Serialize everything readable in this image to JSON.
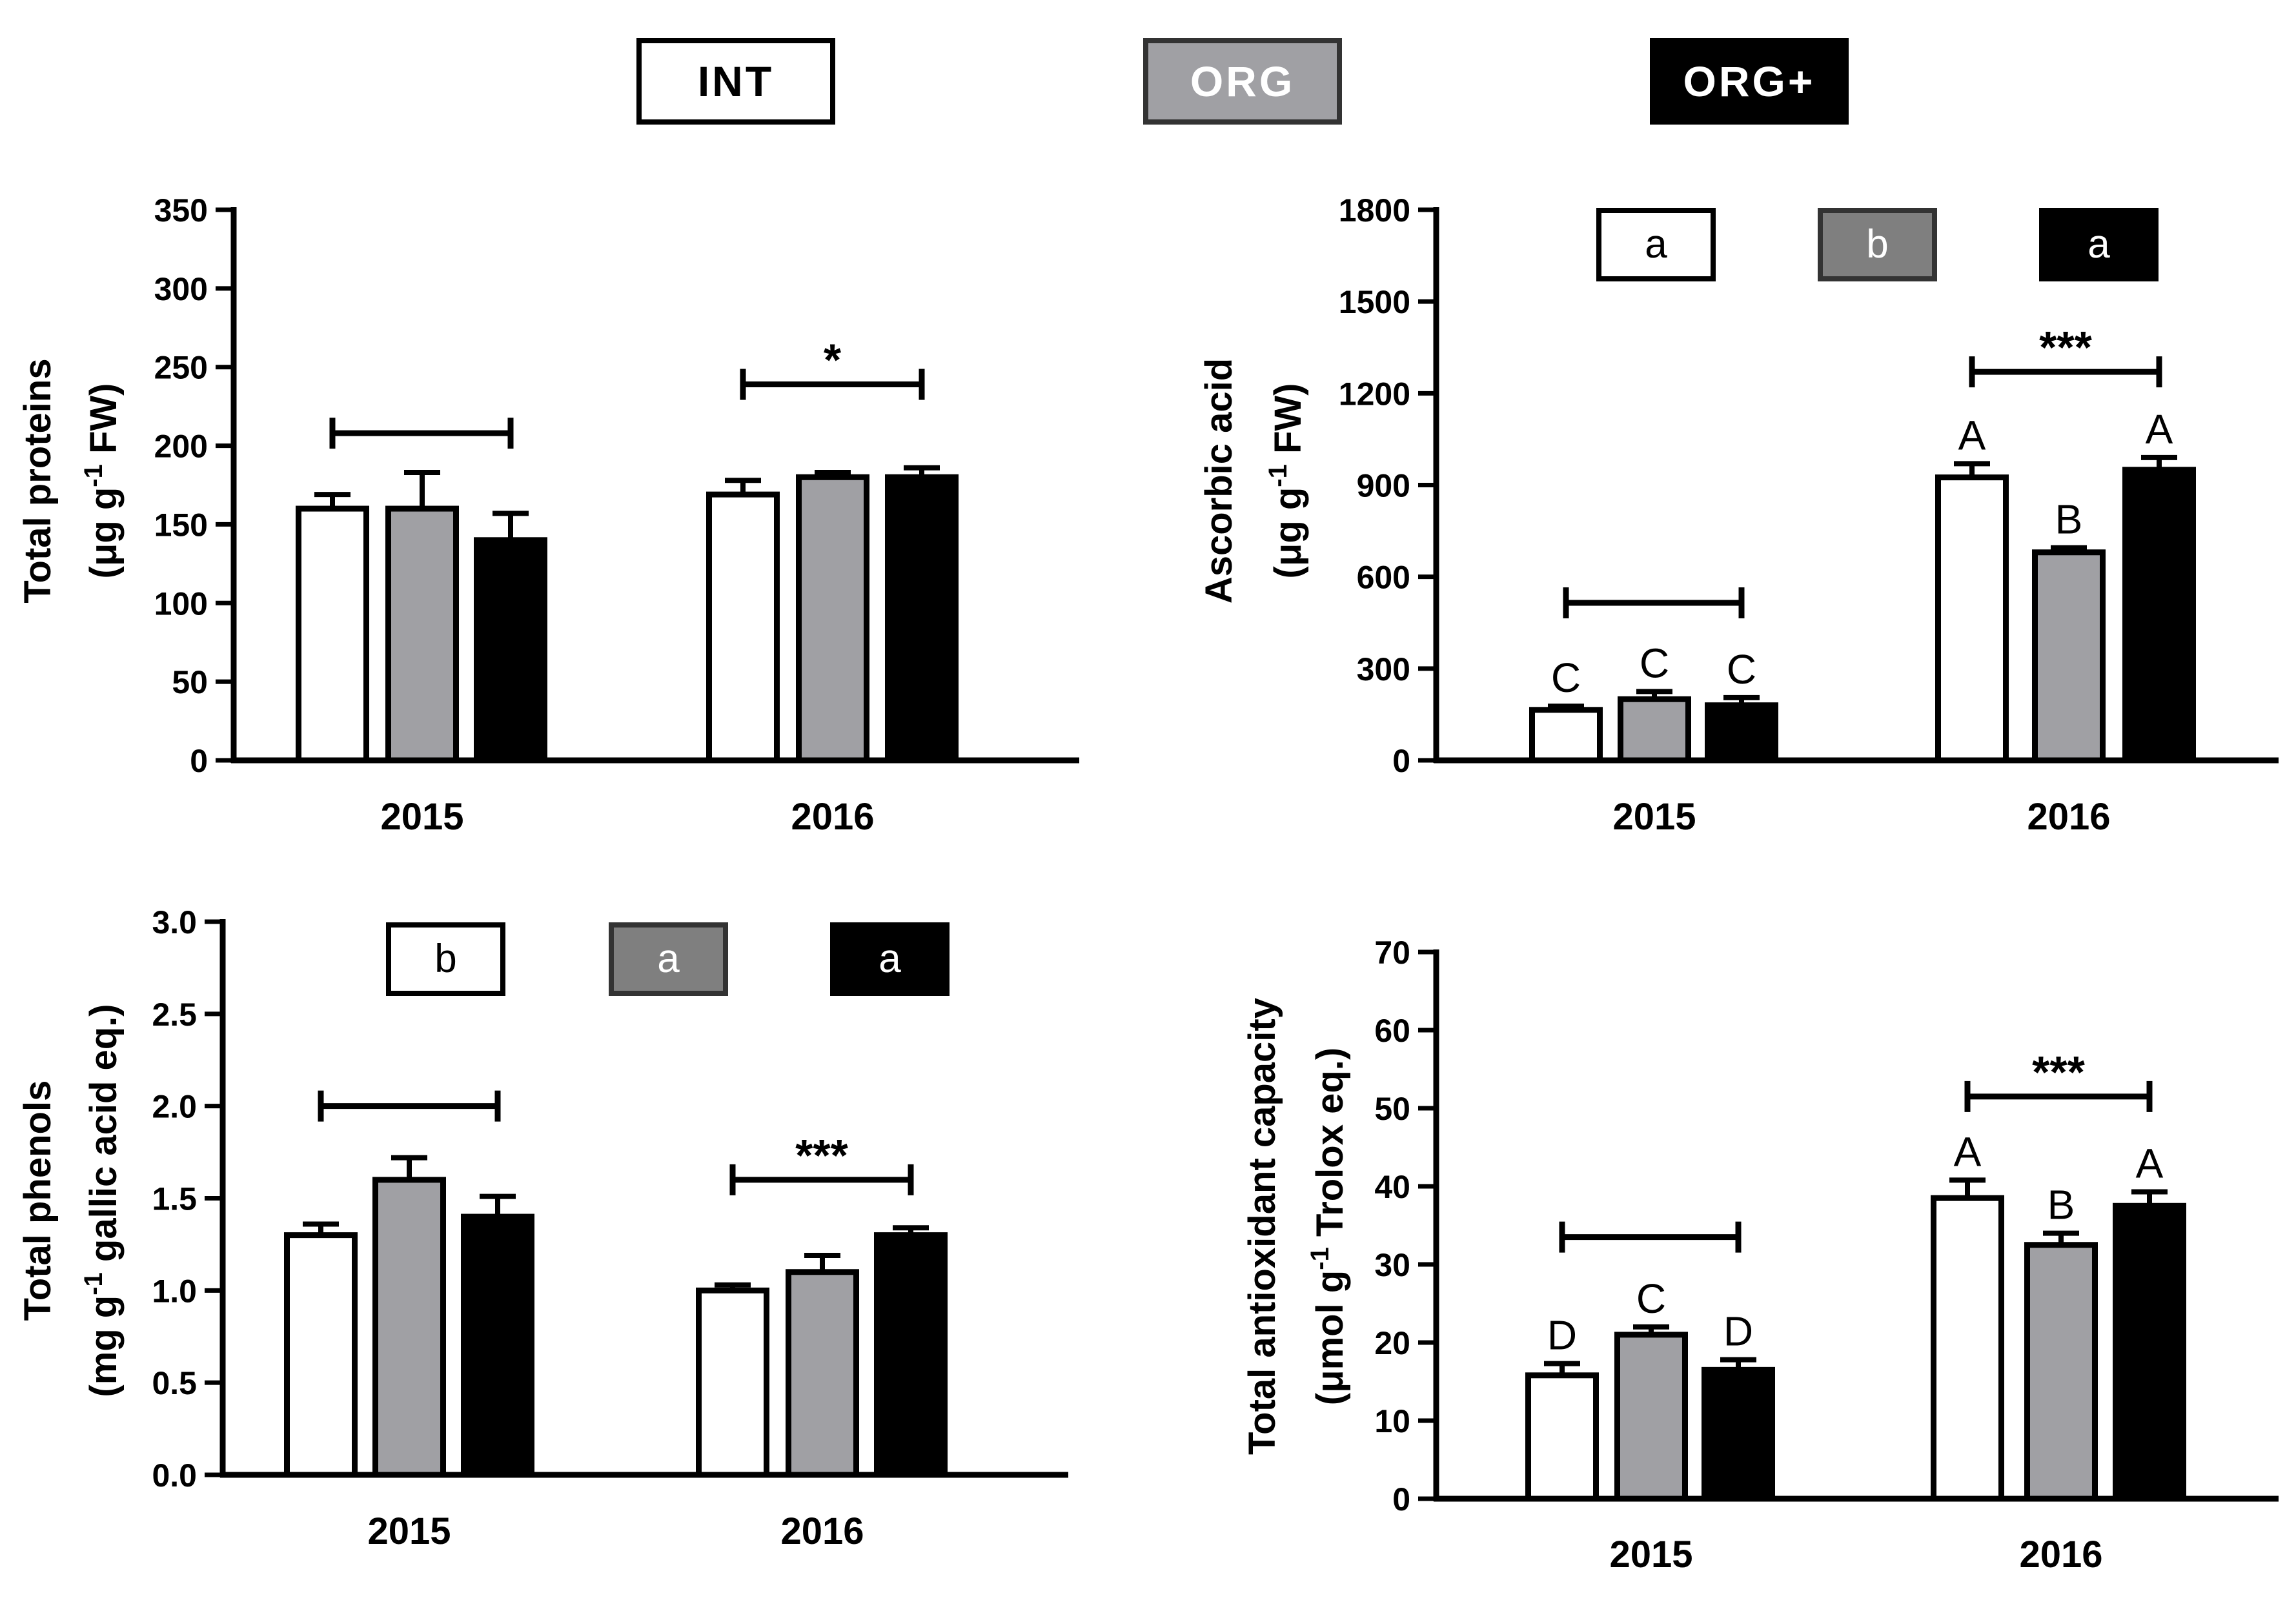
{
  "legend": [
    {
      "label": "INT",
      "fill": "#ffffff",
      "text_color": "#000000"
    },
    {
      "label": "ORG",
      "fill": "#a0a0a4",
      "text_color": "#ffffff"
    },
    {
      "label": "ORG+",
      "fill": "#000000",
      "text_color": "#ffffff"
    }
  ],
  "colors": {
    "INT": "#ffffff",
    "ORG": "#a0a0a4",
    "ORG+": "#000000",
    "axis": "#000000",
    "group_box_ORG": "#7f7f7f"
  },
  "chart_data": [
    {
      "id": "proteins",
      "type": "bar",
      "ylabel_line1": "Total proteins",
      "ylabel_line2": [
        "(μg g",
        "-1",
        " FW)"
      ],
      "categories": [
        "2015",
        "2016"
      ],
      "ylim": [
        0,
        350
      ],
      "yticks": [
        "0",
        "50",
        "100",
        "150",
        "200",
        "250",
        "300",
        "350"
      ],
      "tick_step": 50,
      "series": [
        {
          "name": "INT",
          "values": [
            160,
            169
          ],
          "errors": [
            9,
            9
          ]
        },
        {
          "name": "ORG",
          "values": [
            160,
            180
          ],
          "errors": [
            23,
            3
          ]
        },
        {
          "name": "ORG+",
          "values": [
            140,
            180
          ],
          "errors": [
            17,
            6
          ]
        }
      ],
      "brackets": [
        {
          "category": "2015",
          "label": "",
          "at": 208
        },
        {
          "category": "2016",
          "label": "*",
          "at": 239
        }
      ],
      "bar_letters": null,
      "group_boxes": null
    },
    {
      "id": "ascorbic",
      "type": "bar",
      "ylabel_line1": "Ascorbic acid",
      "ylabel_line2": [
        "(μg g",
        "-1",
        " FW)"
      ],
      "categories": [
        "2015",
        "2016"
      ],
      "ylim": [
        0,
        1800
      ],
      "yticks": [
        "0",
        "300",
        "600",
        "900",
        "1200",
        "1500",
        "1800"
      ],
      "tick_step": 300,
      "series": [
        {
          "name": "INT",
          "values": [
            165,
            925
          ],
          "errors": [
            12,
            45
          ]
        },
        {
          "name": "ORG",
          "values": [
            200,
            680
          ],
          "errors": [
            25,
            15
          ]
        },
        {
          "name": "ORG+",
          "values": [
            180,
            950
          ],
          "errors": [
            25,
            40
          ]
        }
      ],
      "brackets": [
        {
          "category": "2015",
          "label": "",
          "at": 515
        },
        {
          "category": "2016",
          "label": "***",
          "at": 1270
        }
      ],
      "bar_letters": [
        [
          "C",
          "C",
          "C"
        ],
        [
          "A",
          "B",
          "A"
        ]
      ],
      "group_boxes": [
        "a",
        "b",
        "a"
      ]
    },
    {
      "id": "phenols",
      "type": "bar",
      "ylabel_line1": "Total phenols",
      "ylabel_line2": [
        "(mg g",
        "-1",
        " gallic acid eq.)"
      ],
      "categories": [
        "2015",
        "2016"
      ],
      "ylim": [
        0,
        3.0
      ],
      "yticks": [
        "0.0",
        "0.5",
        "1.0",
        "1.5",
        "2.0",
        "2.5",
        "3.0"
      ],
      "tick_step": 0.5,
      "series": [
        {
          "name": "INT",
          "values": [
            1.3,
            1.0
          ],
          "errors": [
            0.06,
            0.03
          ]
        },
        {
          "name": "ORG",
          "values": [
            1.6,
            1.1
          ],
          "errors": [
            0.12,
            0.09
          ]
        },
        {
          "name": "ORG+",
          "values": [
            1.4,
            1.3
          ],
          "errors": [
            0.11,
            0.04
          ]
        }
      ],
      "brackets": [
        {
          "category": "2015",
          "label": "",
          "at": 2.0
        },
        {
          "category": "2016",
          "label": "***",
          "at": 1.6
        }
      ],
      "bar_letters": null,
      "group_boxes": [
        "b",
        "a",
        "a"
      ]
    },
    {
      "id": "antioxidant",
      "type": "bar",
      "ylabel_line1": "Total antioxidant capacity",
      "ylabel_line2": [
        "(μmol g",
        "-1",
        " Trolox eq.)"
      ],
      "categories": [
        "2015",
        "2016"
      ],
      "ylim": [
        0,
        70
      ],
      "yticks": [
        "0",
        "10",
        "20",
        "30",
        "40",
        "50",
        "60",
        "70"
      ],
      "tick_step": 10,
      "series": [
        {
          "name": "INT",
          "values": [
            15.8,
            38.5
          ],
          "errors": [
            1.5,
            2.3
          ]
        },
        {
          "name": "ORG",
          "values": [
            21,
            32.5
          ],
          "errors": [
            1.0,
            1.5
          ]
        },
        {
          "name": "ORG+",
          "values": [
            16.5,
            37.5
          ],
          "errors": [
            1.3,
            1.8
          ]
        }
      ],
      "brackets": [
        {
          "category": "2015",
          "label": "",
          "at": 33.5
        },
        {
          "category": "2016",
          "label": "***",
          "at": 51.5
        }
      ],
      "bar_letters": [
        [
          "D",
          "C",
          "D"
        ],
        [
          "A",
          "B",
          "A"
        ]
      ],
      "group_boxes": null
    }
  ]
}
